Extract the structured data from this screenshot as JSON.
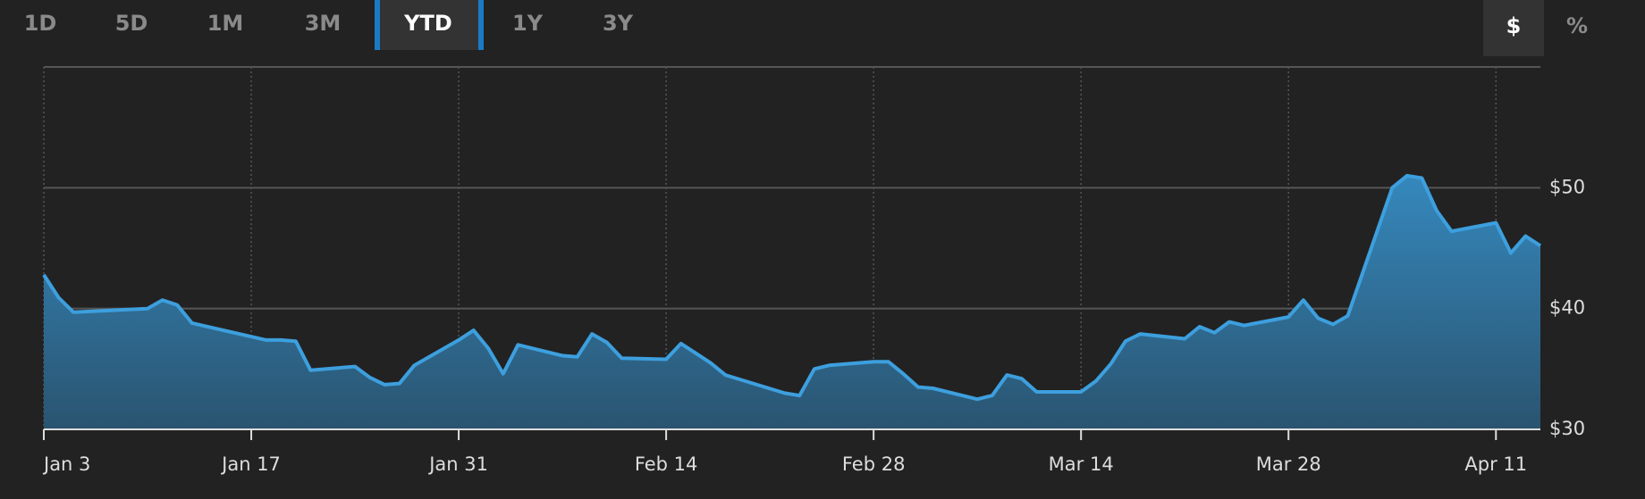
{
  "controls": {
    "ranges": [
      "1D",
      "5D",
      "1M",
      "3M",
      "YTD",
      "1Y",
      "3Y"
    ],
    "selected_range": 4,
    "units": [
      "$",
      "%"
    ],
    "selected_unit": 0
  },
  "chart_data": {
    "type": "area",
    "x": [
      "Jan 3",
      "Jan 4",
      "Jan 5",
      "Jan 10",
      "Jan 11",
      "Jan 12",
      "Jan 13",
      "Jan 18",
      "Jan 19",
      "Jan 20",
      "Jan 21",
      "Jan 24",
      "Jan 25",
      "Jan 26",
      "Jan 27",
      "Jan 28",
      "Jan 31",
      "Feb 1",
      "Feb 2",
      "Feb 3",
      "Feb 4",
      "Feb 7",
      "Feb 8",
      "Feb 9",
      "Feb 10",
      "Feb 11",
      "Feb 14",
      "Feb 15",
      "Feb 16",
      "Feb 17",
      "Feb 18",
      "Feb 22",
      "Feb 23",
      "Feb 24",
      "Feb 25",
      "Feb 28",
      "Mar 1",
      "Mar 2",
      "Mar 3",
      "Mar 4",
      "Mar 7",
      "Mar 8",
      "Mar 9",
      "Mar 10",
      "Mar 11",
      "Mar 14",
      "Mar 15",
      "Mar 16",
      "Mar 17",
      "Mar 18",
      "Mar 21",
      "Mar 22",
      "Mar 23",
      "Mar 24",
      "Mar 25",
      "Mar 28",
      "Mar 29",
      "Mar 30",
      "Mar 31",
      "Apr 1",
      "Apr 4",
      "Apr 5",
      "Apr 6",
      "Apr 7",
      "Apr 8",
      "Apr 11",
      "Apr 12",
      "Apr 13",
      "Apr 14"
    ],
    "series": [
      {
        "color": "#3d9fde",
        "values": [
          42.8,
          40.9,
          39.7,
          40.0,
          40.7,
          40.3,
          38.8,
          37.4,
          37.4,
          37.3,
          34.9,
          35.2,
          34.3,
          33.7,
          33.8,
          35.3,
          37.4,
          38.2,
          36.7,
          34.6,
          37.0,
          36.1,
          36.0,
          37.9,
          37.2,
          35.9,
          35.8,
          37.1,
          36.3,
          35.5,
          34.5,
          33.0,
          32.8,
          35.0,
          35.3,
          35.6,
          35.6,
          34.6,
          33.5,
          33.4,
          32.5,
          32.8,
          34.5,
          34.2,
          33.1,
          33.1,
          34.0,
          35.4,
          37.3,
          37.9,
          37.5,
          38.5,
          38.0,
          38.9,
          38.6,
          39.3,
          40.7,
          39.2,
          38.7,
          39.4,
          50.0,
          51.0,
          50.8,
          48.1,
          46.4,
          47.1,
          44.6,
          46.0,
          45.2
        ]
      }
    ],
    "xlim": [
      "Jan 3",
      "Apr 14"
    ],
    "xticks": [
      "Jan 3",
      "Jan 17",
      "Jan 31",
      "Feb 14",
      "Feb 28",
      "Mar 14",
      "Mar 28",
      "Apr 11"
    ],
    "ylim": [
      30,
      60
    ],
    "yticks": [
      {
        "value": 30,
        "label": "$30"
      },
      {
        "value": 40,
        "label": "$40"
      },
      {
        "value": 50,
        "label": "$50"
      }
    ],
    "grid": true
  }
}
